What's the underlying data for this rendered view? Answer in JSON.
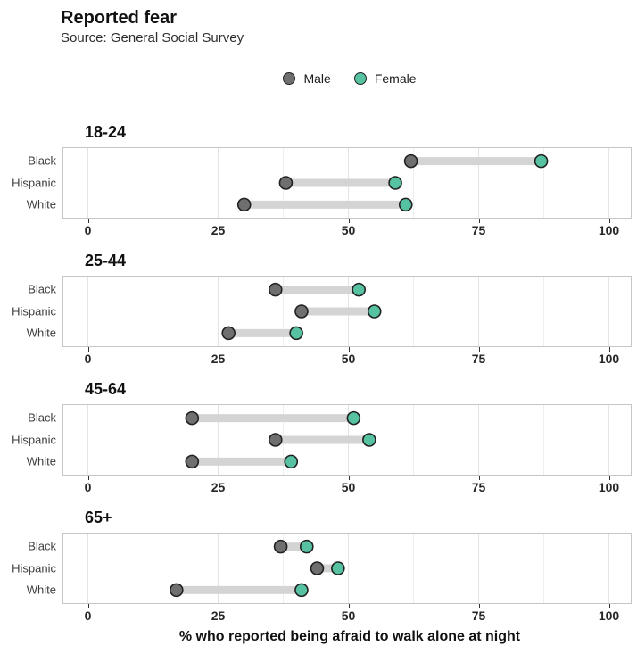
{
  "header": {
    "title": "Reported fear",
    "subtitle": "Source: General Social Survey"
  },
  "legend": [
    {
      "label": "Male",
      "color": "#6f6f6f"
    },
    {
      "label": "Female",
      "color": "#56c2a1"
    }
  ],
  "colors": {
    "male": "#6f6f6f",
    "female": "#56c2a1",
    "segment": "#d4d4d4",
    "dot_stroke": "#212121"
  },
  "axis": {
    "title": "% who reported being afraid to walk alone at night",
    "ticks": [
      0,
      25,
      50,
      75,
      100
    ]
  },
  "chart_data": {
    "type": "dumbbell",
    "title": "Reported fear",
    "subtitle": "Source: General Social Survey",
    "xlabel": "% who reported being afraid to walk alone at night",
    "xlim": [
      0,
      100
    ],
    "x_ticks": [
      0,
      25,
      50,
      75,
      100
    ],
    "grid": "on",
    "legend_position": "top-center",
    "categories": [
      "Black",
      "Hispanic",
      "White"
    ],
    "facets": [
      {
        "label": "18-24",
        "series": [
          {
            "name": "Male",
            "values": [
              62,
              38,
              30
            ]
          },
          {
            "name": "Female",
            "values": [
              87,
              59,
              61
            ]
          }
        ]
      },
      {
        "label": "25-44",
        "series": [
          {
            "name": "Male",
            "values": [
              36,
              41,
              27
            ]
          },
          {
            "name": "Female",
            "values": [
              52,
              55,
              40
            ]
          }
        ]
      },
      {
        "label": "45-64",
        "series": [
          {
            "name": "Male",
            "values": [
              20,
              36,
              20
            ]
          },
          {
            "name": "Female",
            "values": [
              51,
              54,
              39
            ]
          }
        ]
      },
      {
        "label": "65+",
        "series": [
          {
            "name": "Male",
            "values": [
              37,
              44,
              17
            ]
          },
          {
            "name": "Female",
            "values": [
              42,
              48,
              41
            ]
          }
        ]
      }
    ]
  }
}
